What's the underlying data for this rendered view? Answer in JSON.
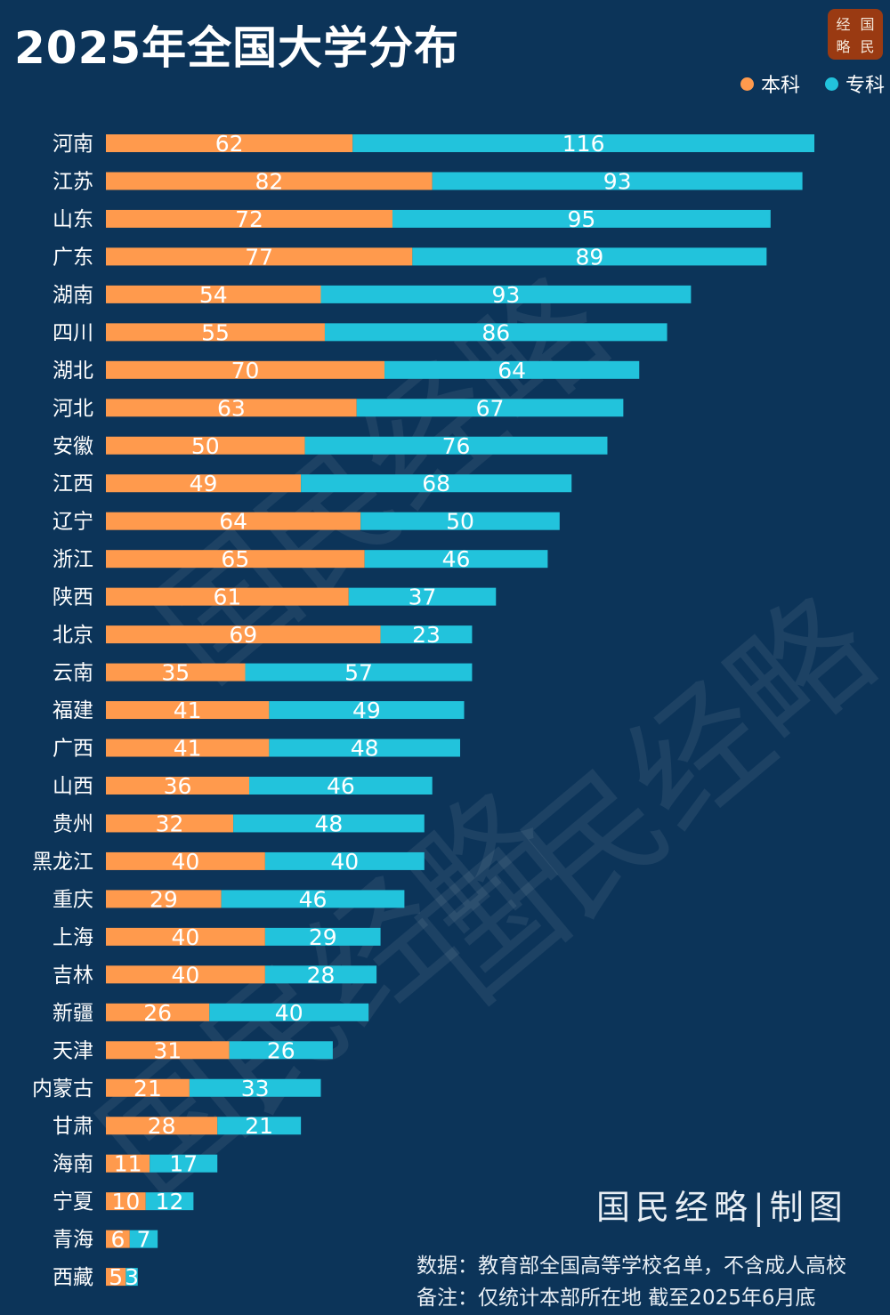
{
  "title": "2025年全国大学分布",
  "logo_text": [
    "经",
    "国",
    "略",
    "民"
  ],
  "credit": "国民经略|制图",
  "notes": {
    "source": "数据：教育部全国高等学校名单，不含成人高校",
    "remark": "备注：仅统计本部所在地 截至2025年6月底"
  },
  "watermark": "国民经略",
  "colors": {
    "background": "#0c3459",
    "benke": "#ff9a4d",
    "zhuanke": "#22c3dc"
  },
  "chart_data": {
    "type": "bar",
    "orientation": "horizontal",
    "stacked": true,
    "legend_position": "top-right",
    "grid": false,
    "categories": [
      "河南",
      "江苏",
      "山东",
      "广东",
      "湖南",
      "四川",
      "湖北",
      "河北",
      "安徽",
      "江西",
      "辽宁",
      "浙江",
      "陕西",
      "北京",
      "云南",
      "福建",
      "广西",
      "山西",
      "贵州",
      "黑龙江",
      "重庆",
      "上海",
      "吉林",
      "新疆",
      "天津",
      "内蒙古",
      "甘肃",
      "海南",
      "宁夏",
      "青海",
      "西藏"
    ],
    "series": [
      {
        "name": "本科",
        "color": "#ff9a4d",
        "values": [
          62,
          82,
          72,
          77,
          54,
          55,
          70,
          63,
          50,
          49,
          64,
          65,
          61,
          69,
          35,
          41,
          41,
          36,
          32,
          40,
          29,
          40,
          40,
          26,
          31,
          21,
          28,
          11,
          10,
          6,
          5
        ]
      },
      {
        "name": "专科",
        "color": "#22c3dc",
        "values": [
          116,
          93,
          95,
          89,
          93,
          86,
          64,
          67,
          76,
          68,
          50,
          46,
          37,
          23,
          57,
          49,
          48,
          46,
          48,
          40,
          46,
          29,
          28,
          40,
          26,
          33,
          21,
          17,
          12,
          7,
          3
        ]
      }
    ]
  }
}
